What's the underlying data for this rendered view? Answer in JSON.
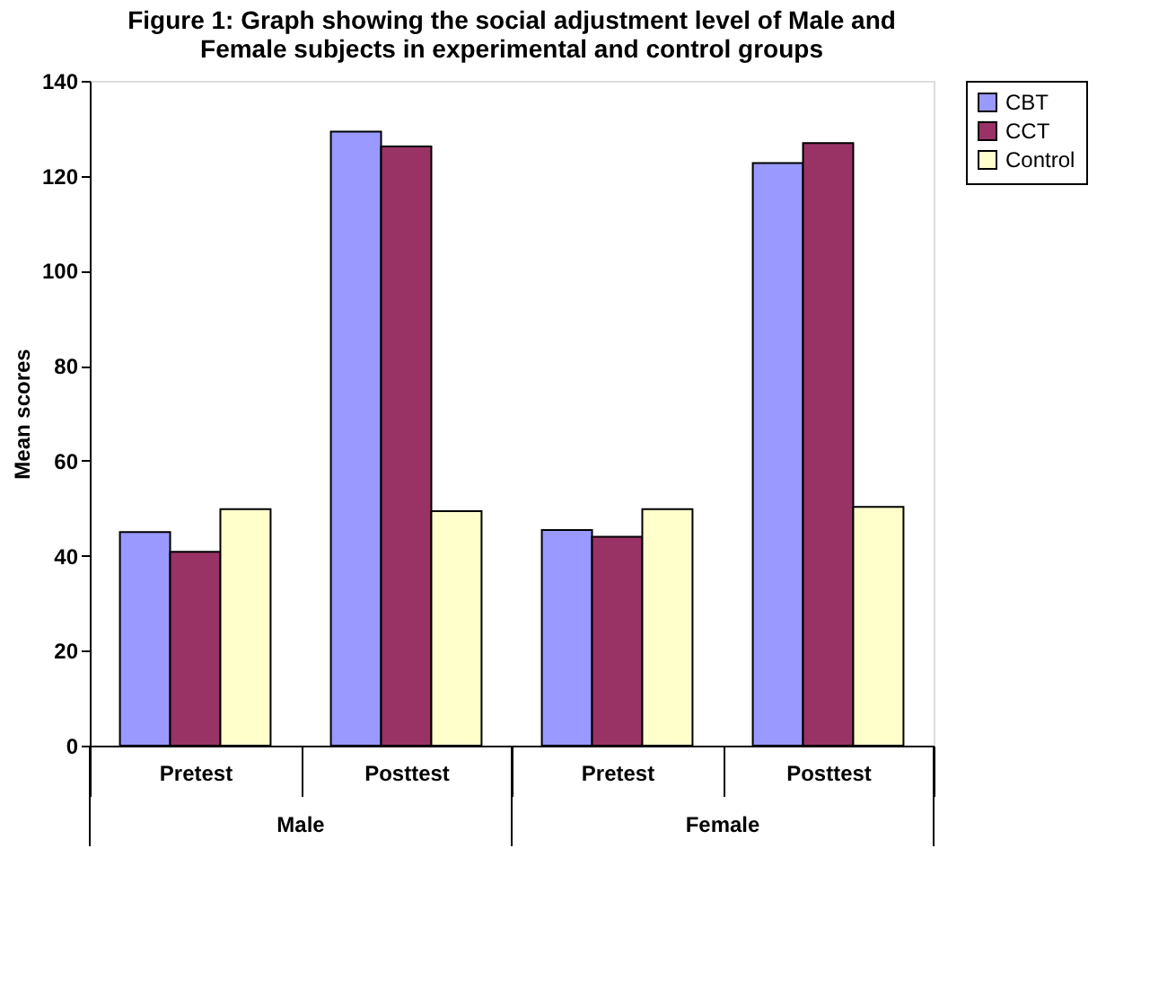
{
  "chart_data": {
    "type": "bar",
    "title": [
      "Figure 1: Graph showing the social adjustment level of Male and",
      "Female subjects in experimental and control groups"
    ],
    "ylabel": "Mean scores",
    "categories": [
      "Pretest",
      "Posttest",
      "Pretest",
      "Posttest"
    ],
    "series": [
      {
        "name": "CBT",
        "color": "#9999ff",
        "values": [
          45.0,
          129.3,
          45.4,
          122.7
        ]
      },
      {
        "name": "CCT",
        "color": "#993366",
        "values": [
          40.8,
          126.2,
          44.0,
          126.9
        ]
      },
      {
        "name": "Control",
        "color": "#ffffcc",
        "values": [
          49.8,
          49.4,
          49.8,
          50.3
        ]
      }
    ],
    "annotations": [
      "Male",
      "Female"
    ],
    "ylim": [
      0,
      140
    ],
    "yticks": [
      0,
      20,
      40,
      60,
      80,
      100,
      120,
      140
    ],
    "grid": false,
    "legend": "right"
  }
}
